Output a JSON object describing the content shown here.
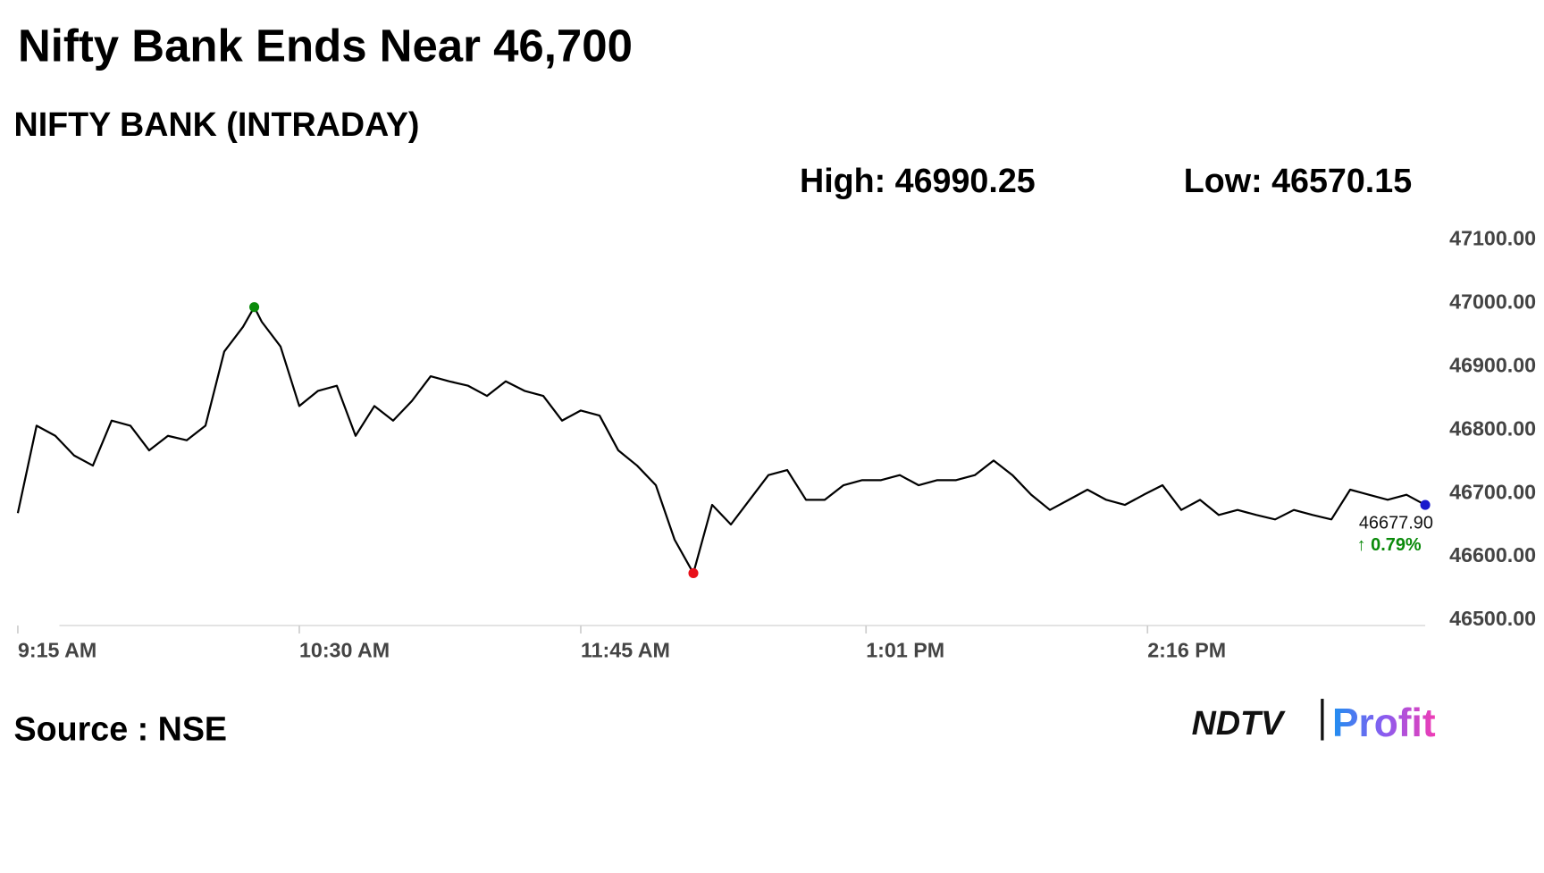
{
  "chart_data": {
    "type": "line",
    "title": "Nifty Bank Ends Near 46,700",
    "subtitle": "NIFTY BANK (INTRADAY)",
    "high_label": "High: 46990.25",
    "low_label": "Low: 46570.15",
    "source": "Source : NSE",
    "logo": {
      "brand": "NDTV",
      "product": "Profit"
    },
    "x": [
      555,
      560,
      565,
      570,
      575,
      580,
      585,
      590,
      595,
      600,
      605,
      610,
      615,
      618,
      620,
      625,
      630,
      635,
      640,
      645,
      650,
      655,
      660,
      665,
      670,
      675,
      680,
      685,
      690,
      695,
      700,
      705,
      710,
      715,
      720,
      725,
      730,
      735,
      740,
      745,
      750,
      755,
      760,
      765,
      770,
      775,
      780,
      785,
      790,
      795,
      800,
      805,
      810,
      815,
      820,
      825,
      830,
      835,
      840,
      845,
      850,
      855,
      860,
      865,
      870,
      875,
      880,
      885,
      890,
      895,
      900,
      905,
      910,
      915,
      920,
      925,
      930
    ],
    "series": [
      {
        "name": "NIFTY BANK",
        "color": "#000000",
        "values": [
          46665,
          46803,
          46787,
          46756,
          46740,
          46811,
          46803,
          46764,
          46787,
          46780,
          46803,
          46920,
          46959,
          46990.25,
          46967,
          46928,
          46834,
          46858,
          46866,
          46787,
          46834,
          46811,
          46842,
          46881,
          46873,
          46866,
          46850,
          46873,
          46858,
          46850,
          46811,
          46827,
          46819,
          46764,
          46740,
          46709,
          46623,
          46570.15,
          46678,
          46647,
          46686,
          46725,
          46733,
          46686,
          46686,
          46709,
          46717,
          46717,
          46725,
          46709,
          46717,
          46717,
          46725,
          46748,
          46725,
          46694,
          46670,
          46686,
          46702,
          46686,
          46678,
          46694,
          46709,
          46670,
          46686,
          46662,
          46670,
          46662,
          46655,
          46670,
          46662,
          46655,
          46702,
          46694,
          46686,
          46694,
          46677.9
        ],
        "value_labels": {
          "76": "46677.90"
        }
      }
    ],
    "markers": [
      {
        "index": 13,
        "color": "#0a8a0a"
      },
      {
        "index": 37,
        "color": "#e8101a"
      },
      {
        "index": 76,
        "color": "#1a1acc"
      }
    ],
    "change_label": "↑ 0.79%",
    "change_color": "#0a8a0a",
    "xlim": [
      555,
      930
    ],
    "xticks": [
      {
        "value": 555,
        "label": "9:15 AM"
      },
      {
        "value": 630,
        "label": "10:30 AM"
      },
      {
        "value": 705,
        "label": "11:45 AM"
      },
      {
        "value": 781,
        "label": "1:01 PM"
      },
      {
        "value": 856,
        "label": "2:16 PM"
      }
    ],
    "ylim": [
      46500,
      47100
    ],
    "yticks": [
      {
        "value": 46500,
        "label": "46500.00"
      },
      {
        "value": 46600,
        "label": "46600.00"
      },
      {
        "value": 46700,
        "label": "46700.00"
      },
      {
        "value": 46800,
        "label": "46800.00"
      },
      {
        "value": 46900,
        "label": "46900.00"
      },
      {
        "value": 47000,
        "label": "47000.00"
      },
      {
        "value": 47100,
        "label": "47100.00"
      }
    ],
    "grid": false
  }
}
